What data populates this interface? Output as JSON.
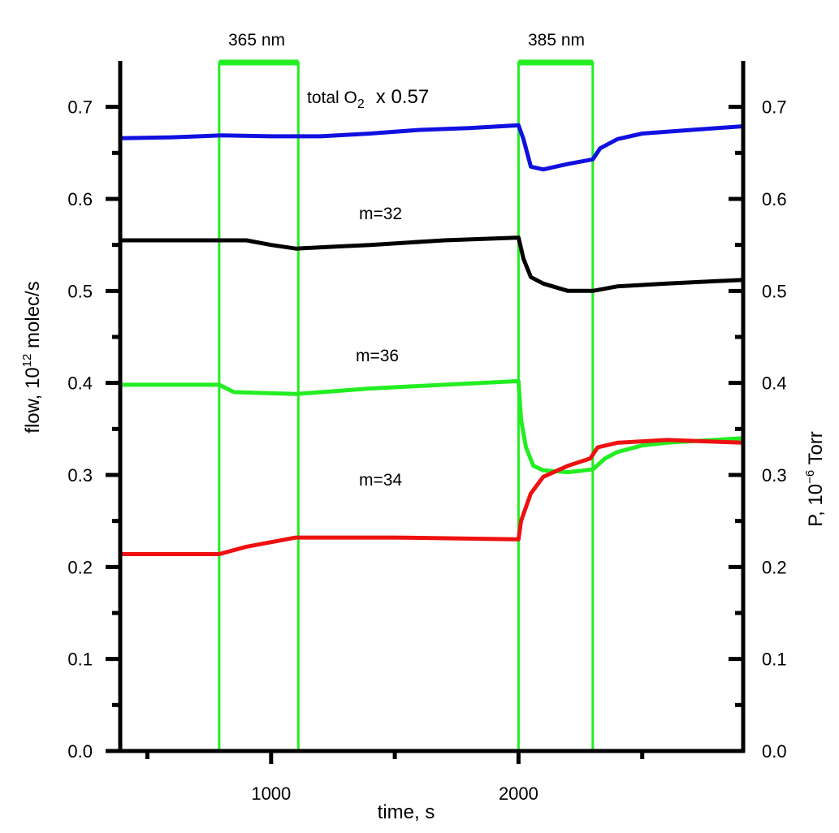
{
  "chart_data": {
    "type": "line",
    "title": "",
    "xlabel": "time, s",
    "ylabel": "flow, 10^12 molec/s",
    "ylabel_parts": {
      "base": "flow, 10",
      "sup": "12",
      "rest": " molec/s"
    },
    "y2label": "P, 10^-6 Torr",
    "y2label_parts": {
      "base": "P, 10",
      "sup": "−6",
      "rest": " Torr"
    },
    "xlim": [
      390,
      2908
    ],
    "ylim": [
      0,
      0.75
    ],
    "y2lim": [
      0,
      0.75
    ],
    "xticks": [
      {
        "v": 1000,
        "label": "1000"
      },
      {
        "v": 2000,
        "label": "2000"
      }
    ],
    "xminor": [
      500,
      1500,
      2500
    ],
    "yticks": [
      {
        "v": 0.0,
        "label": "0.0"
      },
      {
        "v": 0.1,
        "label": "0.1"
      },
      {
        "v": 0.2,
        "label": "0.2"
      },
      {
        "v": 0.3,
        "label": "0.3"
      },
      {
        "v": 0.4,
        "label": "0.4"
      },
      {
        "v": 0.5,
        "label": "0.5"
      },
      {
        "v": 0.6,
        "label": "0.6"
      },
      {
        "v": 0.7,
        "label": "0.7"
      }
    ],
    "illumination": [
      {
        "label": "365 nm",
        "start": 790,
        "end": 1110,
        "color": "#22ee22"
      },
      {
        "label": "385 nm",
        "start": 2000,
        "end": 2300,
        "color": "#22ee22"
      }
    ],
    "series": [
      {
        "name": "total O2 x 0.57",
        "label_base": "total O",
        "label_sub": "2",
        "label_factor": "x 0.57",
        "color": "#1010e0",
        "x": [
          390,
          600,
          800,
          1000,
          1100,
          1200,
          1400,
          1600,
          1800,
          2000,
          2020,
          2050,
          2100,
          2200,
          2300,
          2330,
          2400,
          2500,
          2700,
          2908
        ],
        "y": [
          0.666,
          0.667,
          0.669,
          0.668,
          0.668,
          0.668,
          0.671,
          0.675,
          0.677,
          0.68,
          0.665,
          0.635,
          0.632,
          0.638,
          0.643,
          0.655,
          0.665,
          0.671,
          0.675,
          0.679
        ]
      },
      {
        "name": "m=32",
        "color": "#000000",
        "x": [
          390,
          600,
          900,
          1000,
          1100,
          1250,
          1400,
          1700,
          2000,
          2020,
          2050,
          2100,
          2200,
          2300,
          2400,
          2600,
          2908
        ],
        "y": [
          0.555,
          0.555,
          0.555,
          0.55,
          0.546,
          0.548,
          0.55,
          0.555,
          0.558,
          0.535,
          0.515,
          0.508,
          0.5,
          0.5,
          0.505,
          0.508,
          0.512
        ]
      },
      {
        "name": "m=36",
        "color": "#22ee22",
        "x": [
          390,
          600,
          790,
          850,
          1100,
          1400,
          1700,
          2000,
          2010,
          2030,
          2060,
          2100,
          2200,
          2300,
          2350,
          2400,
          2500,
          2600,
          2908
        ],
        "y": [
          0.398,
          0.398,
          0.398,
          0.39,
          0.388,
          0.394,
          0.398,
          0.402,
          0.36,
          0.33,
          0.31,
          0.305,
          0.303,
          0.306,
          0.318,
          0.325,
          0.332,
          0.335,
          0.34
        ]
      },
      {
        "name": "m=34",
        "color": "#ee1111",
        "x": [
          390,
          600,
          790,
          900,
          1100,
          1500,
          2000,
          2010,
          2050,
          2100,
          2200,
          2290,
          2320,
          2400,
          2600,
          2908
        ],
        "y": [
          0.214,
          0.214,
          0.214,
          0.222,
          0.232,
          0.232,
          0.23,
          0.25,
          0.28,
          0.298,
          0.31,
          0.318,
          0.33,
          0.335,
          0.338,
          0.335
        ]
      }
    ]
  }
}
